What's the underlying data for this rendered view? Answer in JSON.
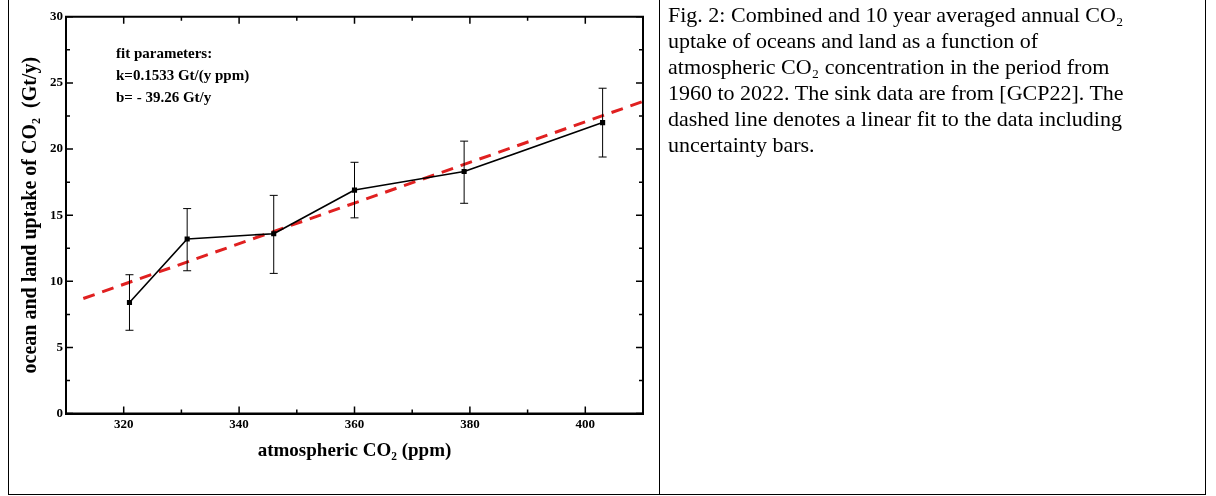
{
  "chart_data": {
    "type": "line",
    "xlabel": "atmospheric CO₂ (ppm)",
    "ylabel": "ocean and land uptake of CO₂  (Gt/y)",
    "xlim": [
      310,
      410
    ],
    "xticks": [
      320,
      {
        "value": 330,
        "label": null
      },
      340,
      {
        "value": 350,
        "label": null
      },
      360,
      {
        "value": 370,
        "label": null
      },
      380,
      {
        "value": 390,
        "label": null
      },
      400
    ],
    "ylim": [
      0,
      30
    ],
    "yticks": [
      0,
      {
        "value": 2.5,
        "label": null
      },
      5,
      {
        "value": 7.5,
        "label": null
      },
      10,
      {
        "value": 12.5,
        "label": null
      },
      15,
      {
        "value": 17.5,
        "label": null
      },
      20,
      {
        "value": 22.5,
        "label": null
      },
      25,
      {
        "value": 27.5,
        "label": null
      },
      30
    ],
    "grid": false,
    "legend": false,
    "series": [
      {
        "type": "line",
        "color": "#000000",
        "marker": "square",
        "line_style": "solid",
        "x": [
          321,
          331,
          346,
          360,
          379,
          403
        ],
        "values": [
          8.4,
          13.2,
          13.6,
          16.9,
          18.3,
          22.0
        ],
        "errors": [
          [
            6.3,
            10.5
          ],
          [
            10.8,
            15.5
          ],
          [
            10.6,
            16.5
          ],
          [
            14.8,
            19.0
          ],
          [
            15.9,
            20.6
          ],
          [
            19.4,
            24.6
          ]
        ]
      },
      {
        "type": "line",
        "color": "#e02020",
        "marker": "none",
        "line_style": "dashed",
        "x": [
          313,
          410
        ],
        "values": [
          8.7,
          23.6
        ]
      }
    ],
    "annotations": [
      "fit parameters:",
      "k=0.1533 Gt/(y ppm)",
      "b= - 39.26 Gt/y",
      "Fig. 2:  Combined and 10 year averaged annual CO₂ uptake of oceans and land as a function of atmospheric CO₂ concentration in the period from 1960 to 2022. The sink data are from [GCP22]. The dashed line denotes a linear fit to the data including uncertainty bars."
    ]
  }
}
